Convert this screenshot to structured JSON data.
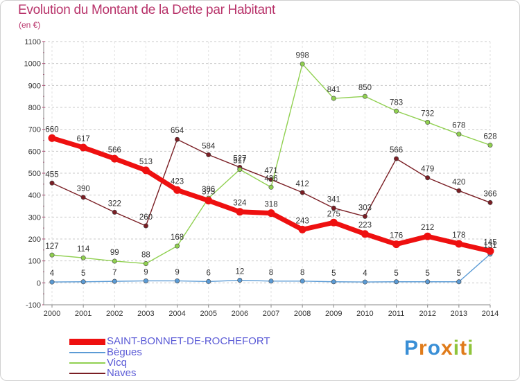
{
  "title": "Evolution du Montant de la Dette par Habitant",
  "subtitle": "(en €)",
  "brand": {
    "text": "Proxiti",
    "letter_colors": [
      "#3a8fd6",
      "#e07b1a",
      "#3a8fd6",
      "#e07b1a",
      "#8fc43a",
      "#e07b1a",
      "#8fc43a"
    ]
  },
  "chart_data": {
    "type": "line",
    "title": "Evolution du Montant de la Dette par Habitant",
    "ylabel": "(en €)",
    "xlabel": "",
    "ylim": [
      -100,
      1100
    ],
    "yticks": [
      -100,
      0,
      100,
      200,
      300,
      400,
      500,
      600,
      700,
      800,
      900,
      1000,
      1100
    ],
    "x": [
      "2000",
      "2001",
      "2002",
      "2003",
      "2004",
      "2005",
      "2006",
      "2007",
      "2008",
      "2009",
      "2010",
      "2011",
      "2012",
      "2013",
      "2014"
    ],
    "grid": "horizontal-dashed",
    "legend_position": "bottom-left",
    "series": [
      {
        "name": "Naves",
        "color": "#7a1e24",
        "values": [
          455,
          390,
          322,
          260,
          654,
          584,
          527,
          471,
          412,
          341,
          303,
          566,
          479,
          420,
          366
        ],
        "labels": [
          "455",
          "390",
          "322",
          "260",
          "654",
          "584",
          "527",
          "471",
          "412",
          "341",
          "303",
          "566",
          "479",
          "420",
          "366"
        ]
      },
      {
        "name": "Vicq",
        "color": "#90d050",
        "values": [
          127,
          114,
          99,
          88,
          168,
          386,
          517,
          436,
          998,
          841,
          850,
          783,
          732,
          678,
          628
        ],
        "labels": [
          "127",
          "114",
          "99",
          "88",
          "168",
          "386",
          "517",
          "436",
          "998",
          "841",
          "850",
          "783",
          "732",
          "678",
          "628"
        ]
      },
      {
        "name": "Bègues",
        "color": "#5b9bd5",
        "values": [
          4,
          5,
          7,
          9,
          9,
          6,
          12,
          8,
          8,
          5,
          4,
          5,
          5,
          5,
          131
        ],
        "labels": [
          "4",
          "5",
          "7",
          "9",
          "9",
          "6",
          "12",
          "8",
          "8",
          "5",
          "4",
          "5",
          "5",
          "5",
          "131"
        ]
      },
      {
        "name": "SAINT-BONNET-DE-ROCHEFORT",
        "color": "#ee1010",
        "values": [
          660,
          617,
          566,
          513,
          423,
          375,
          324,
          318,
          243,
          275,
          223,
          176,
          212,
          178,
          145
        ],
        "labels": [
          "660",
          "617",
          "566",
          "513",
          "423",
          "375",
          "324",
          "318",
          "243",
          "275",
          "223",
          "176",
          "212",
          "178",
          "145"
        ]
      }
    ]
  },
  "legend": [
    {
      "label": "SAINT-BONNET-DE-ROCHEFORT",
      "color": "#ee1010",
      "thickness": 9
    },
    {
      "label": "Bègues",
      "color": "#5b9bd5",
      "thickness": 2
    },
    {
      "label": "Vicq",
      "color": "#90d050",
      "thickness": 2
    },
    {
      "label": "Naves",
      "color": "#7a1e24",
      "thickness": 2
    }
  ]
}
